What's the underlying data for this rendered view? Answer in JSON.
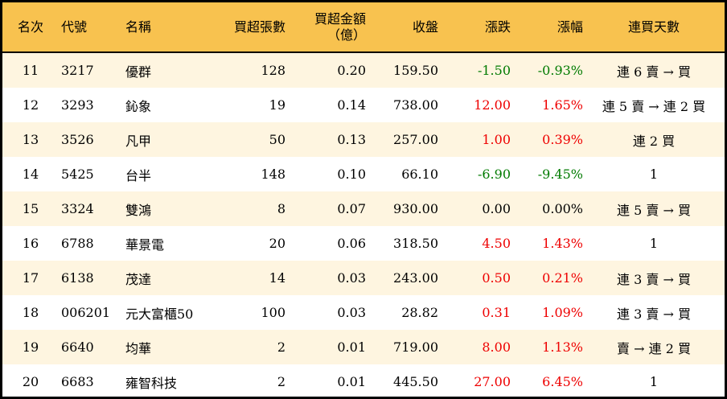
{
  "header": {
    "rank": "名次",
    "code": "代號",
    "name": "名稱",
    "lots": "買超張數",
    "amount_line1": "買超金額",
    "amount_line2": "（億）",
    "close": "收盤",
    "change": "漲跌",
    "pct": "漲幅",
    "streak": "連買天數"
  },
  "colors": {
    "header_bg": "#f8c24f",
    "up": "#ee0000",
    "down": "#007a00",
    "row_alt": "#fef5e0"
  },
  "rows": [
    {
      "rank": "11",
      "code": "3217",
      "name": "優群",
      "lots": "128",
      "amount": "0.20",
      "close": "159.50",
      "change": "-1.50",
      "pct": "-0.93%",
      "streak": "連 6 賣 → 買",
      "dir": "down"
    },
    {
      "rank": "12",
      "code": "3293",
      "name": "鈊象",
      "lots": "19",
      "amount": "0.14",
      "close": "738.00",
      "change": "12.00",
      "pct": "1.65%",
      "streak": "連 5 賣 → 連 2 買",
      "dir": "up"
    },
    {
      "rank": "13",
      "code": "3526",
      "name": "凡甲",
      "lots": "50",
      "amount": "0.13",
      "close": "257.00",
      "change": "1.00",
      "pct": "0.39%",
      "streak": "連 2 買",
      "dir": "up"
    },
    {
      "rank": "14",
      "code": "5425",
      "name": "台半",
      "lots": "148",
      "amount": "0.10",
      "close": "66.10",
      "change": "-6.90",
      "pct": "-9.45%",
      "streak": "1",
      "dir": "down"
    },
    {
      "rank": "15",
      "code": "3324",
      "name": "雙鴻",
      "lots": "8",
      "amount": "0.07",
      "close": "930.00",
      "change": "0.00",
      "pct": "0.00%",
      "streak": "連 5 賣 → 買",
      "dir": "flat"
    },
    {
      "rank": "16",
      "code": "6788",
      "name": "華景電",
      "lots": "20",
      "amount": "0.06",
      "close": "318.50",
      "change": "4.50",
      "pct": "1.43%",
      "streak": "1",
      "dir": "up"
    },
    {
      "rank": "17",
      "code": "6138",
      "name": "茂達",
      "lots": "14",
      "amount": "0.03",
      "close": "243.00",
      "change": "0.50",
      "pct": "0.21%",
      "streak": "連 3 賣 → 買",
      "dir": "up"
    },
    {
      "rank": "18",
      "code": "006201",
      "name": "元大富櫃50",
      "lots": "100",
      "amount": "0.03",
      "close": "28.82",
      "change": "0.31",
      "pct": "1.09%",
      "streak": "連 3 賣 → 買",
      "dir": "up"
    },
    {
      "rank": "19",
      "code": "6640",
      "name": "均華",
      "lots": "2",
      "amount": "0.01",
      "close": "719.00",
      "change": "8.00",
      "pct": "1.13%",
      "streak": "賣 → 連 2 買",
      "dir": "up"
    },
    {
      "rank": "20",
      "code": "6683",
      "name": "雍智科技",
      "lots": "2",
      "amount": "0.01",
      "close": "445.50",
      "change": "27.00",
      "pct": "6.45%",
      "streak": "1",
      "dir": "up"
    }
  ]
}
